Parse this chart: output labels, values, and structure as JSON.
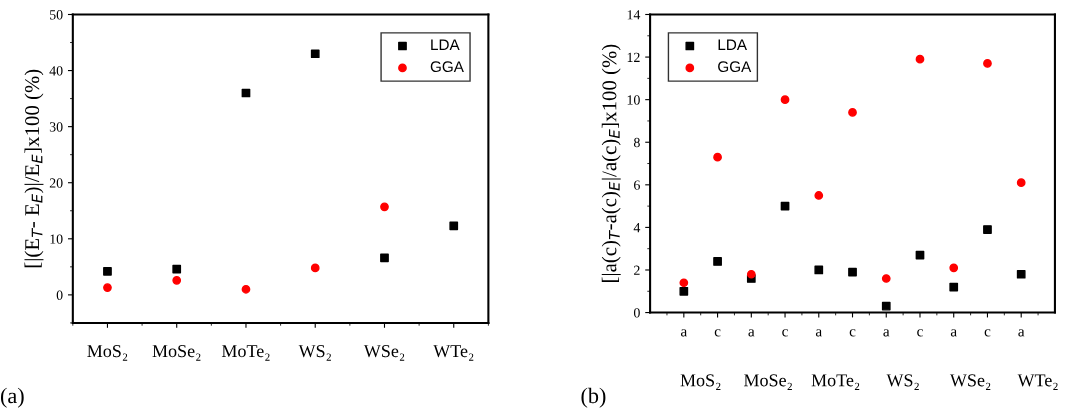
{
  "chart_data": [
    {
      "type": "scatter",
      "ylabel": "[|(E$_{T}$- E$_{E}$)|/E$_{E}$]x100 (%)",
      "categories": [
        "MoS₂",
        "MoSe₂",
        "MoTe₂",
        "WS₂",
        "WSe₂",
        "WTe₂"
      ],
      "series": [
        {
          "name": "LDA",
          "color": "#000000",
          "marker": "square",
          "values": [
            4.2,
            4.6,
            36,
            43,
            6.6,
            12.3
          ]
        },
        {
          "name": "GGA",
          "color": "#ff0000",
          "marker": "circle",
          "values": [
            1.3,
            2.6,
            1.0,
            4.8,
            15.7,
            null
          ]
        }
      ],
      "ylim": [
        -5,
        50
      ],
      "yticks": [
        0,
        10,
        20,
        30,
        40,
        50
      ],
      "legend": "top right",
      "grid": false,
      "annotations": [
        "(a)"
      ]
    },
    {
      "type": "scatter",
      "ylabel": "[|a(c)$_{T}$-a(c)$_{E}$|/a(c)$_{E}$]x100 (%)",
      "categories": [
        "a",
        "c",
        "a",
        "c",
        "a",
        "c",
        "a",
        "c",
        "a",
        "c",
        "a"
      ],
      "series": [
        {
          "name": "LDA",
          "color": "#000000",
          "marker": "square",
          "values": [
            1.0,
            2.4,
            1.6,
            5.0,
            2.0,
            1.9,
            0.3,
            2.7,
            1.2,
            3.9,
            1.8
          ]
        },
        {
          "name": "GGA",
          "color": "#ff0000",
          "marker": "circle",
          "values": [
            1.4,
            7.3,
            1.8,
            10.0,
            5.5,
            9.4,
            1.6,
            11.9,
            2.1,
            11.7,
            6.1
          ]
        }
      ],
      "ylim": [
        0,
        14
      ],
      "yticks": [
        0,
        2,
        4,
        6,
        8,
        10,
        12,
        14
      ],
      "legend": "top left",
      "grid": false,
      "annotations": [
        "MoS₂",
        "MoSe₂",
        "MoTe₂",
        "WS₂",
        "WSe₂",
        "WTe₂",
        "(b)"
      ]
    }
  ]
}
